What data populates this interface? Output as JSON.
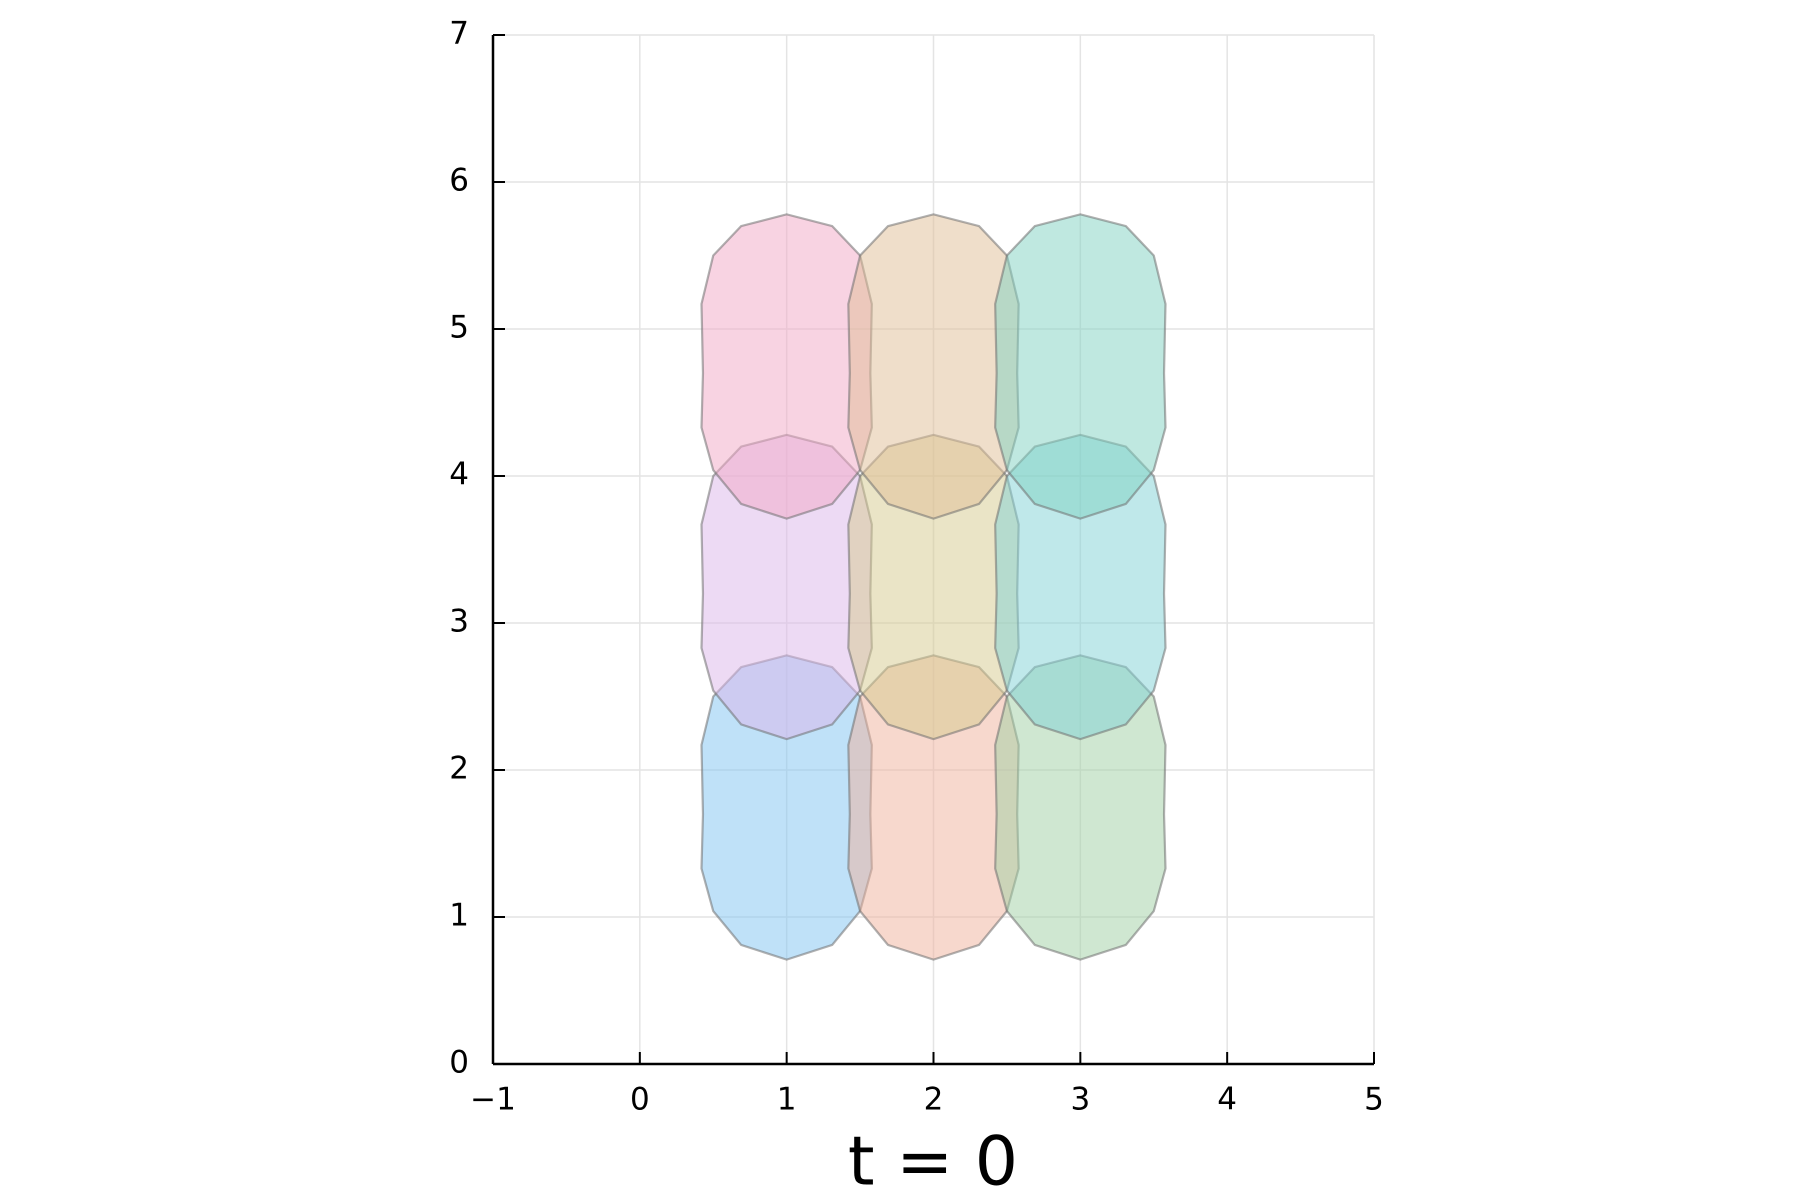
{
  "chart_data": {
    "type": "polygon",
    "xlabel": "t = 0",
    "xlim": [
      -1,
      5
    ],
    "ylim": [
      0,
      7
    ],
    "xticks": [
      {
        "value": -1,
        "label": "−1"
      },
      0,
      1,
      2,
      3,
      4,
      5
    ],
    "yticks": [
      0,
      1,
      2,
      3,
      4,
      5,
      6,
      7
    ],
    "grid": true,
    "alpha": 0.5,
    "edgecolor": "#6f6f6f",
    "series": [
      {
        "color": "#7fc4f2",
        "x": [
          1,
          1.31,
          1.5,
          1.58,
          1.57,
          1.58,
          1.5,
          1.31,
          1,
          0.69,
          0.5,
          0.42,
          0.43,
          0.42,
          0.5,
          0.69
        ],
        "y": [
          0.71,
          0.81,
          1.04,
          1.33,
          1.7,
          2.17,
          2.5,
          2.7,
          2.78,
          2.7,
          2.5,
          2.17,
          1.7,
          1.33,
          1.04,
          0.81
        ]
      },
      {
        "color": "#efb19c",
        "x": [
          2,
          2.31,
          2.5,
          2.58,
          2.57,
          2.58,
          2.5,
          2.31,
          2,
          1.69,
          1.5,
          1.42,
          1.43,
          1.42,
          1.5,
          1.69
        ],
        "y": [
          0.71,
          0.81,
          1.04,
          1.33,
          1.7,
          2.17,
          2.5,
          2.7,
          2.78,
          2.7,
          2.5,
          2.17,
          1.7,
          1.33,
          1.04,
          0.81
        ]
      },
      {
        "color": "#9fcfa3",
        "x": [
          3,
          3.31,
          3.5,
          3.58,
          3.57,
          3.58,
          3.5,
          3.31,
          3,
          2.69,
          2.5,
          2.42,
          2.43,
          2.42,
          2.5,
          2.69
        ],
        "y": [
          0.71,
          0.81,
          1.04,
          1.33,
          1.7,
          2.17,
          2.5,
          2.7,
          2.78,
          2.7,
          2.5,
          2.17,
          1.7,
          1.33,
          1.04,
          0.81
        ]
      },
      {
        "color": "#dbb6ea",
        "x": [
          1,
          1.31,
          1.5,
          1.58,
          1.57,
          1.58,
          1.5,
          1.31,
          1,
          0.69,
          0.5,
          0.42,
          0.43,
          0.42,
          0.5,
          0.69
        ],
        "y": [
          2.21,
          2.31,
          2.54,
          2.83,
          3.2,
          3.67,
          4,
          4.2,
          4.28,
          4.2,
          4,
          3.67,
          3.2,
          2.83,
          2.54,
          2.31
        ]
      },
      {
        "color": "#d5c98e",
        "x": [
          2,
          2.31,
          2.5,
          2.58,
          2.57,
          2.58,
          2.5,
          2.31,
          2,
          1.69,
          1.5,
          1.42,
          1.43,
          1.42,
          1.5,
          1.69
        ],
        "y": [
          2.21,
          2.31,
          2.54,
          2.83,
          3.2,
          3.67,
          4,
          4.2,
          4.28,
          4.2,
          4,
          3.67,
          3.2,
          2.83,
          2.54,
          2.31
        ]
      },
      {
        "color": "#80d1d6",
        "x": [
          3,
          3.31,
          3.5,
          3.58,
          3.57,
          3.58,
          3.5,
          3.31,
          3,
          2.69,
          2.5,
          2.42,
          2.43,
          2.42,
          2.5,
          2.69
        ],
        "y": [
          2.21,
          2.31,
          2.54,
          2.83,
          3.2,
          3.67,
          4,
          4.2,
          4.28,
          4.2,
          4,
          3.67,
          3.2,
          2.83,
          2.54,
          2.31
        ]
      },
      {
        "color": "#f2a7c6",
        "x": [
          1,
          1.31,
          1.5,
          1.58,
          1.57,
          1.58,
          1.5,
          1.31,
          1,
          0.69,
          0.5,
          0.42,
          0.43,
          0.42,
          0.5,
          0.69
        ],
        "y": [
          3.71,
          3.81,
          4.04,
          4.33,
          4.7,
          5.17,
          5.5,
          5.7,
          5.78,
          5.7,
          5.5,
          5.17,
          4.7,
          4.33,
          4.04,
          3.81
        ]
      },
      {
        "color": "#dfbd95",
        "x": [
          2,
          2.31,
          2.5,
          2.58,
          2.57,
          2.58,
          2.5,
          2.31,
          2,
          1.69,
          1.5,
          1.42,
          1.43,
          1.42,
          1.5,
          1.69
        ],
        "y": [
          3.71,
          3.81,
          4.04,
          4.33,
          4.7,
          5.17,
          5.5,
          5.7,
          5.78,
          5.7,
          5.5,
          5.17,
          4.7,
          4.33,
          4.04,
          3.81
        ]
      },
      {
        "color": "#80d2c1",
        "x": [
          3,
          3.31,
          3.5,
          3.58,
          3.57,
          3.58,
          3.5,
          3.31,
          3,
          2.69,
          2.5,
          2.42,
          2.43,
          2.42,
          2.5,
          2.69
        ],
        "y": [
          3.71,
          3.81,
          4.04,
          4.33,
          4.7,
          5.17,
          5.5,
          5.7,
          5.78,
          5.7,
          5.5,
          5.17,
          4.7,
          4.33,
          4.04,
          3.81
        ]
      }
    ]
  }
}
